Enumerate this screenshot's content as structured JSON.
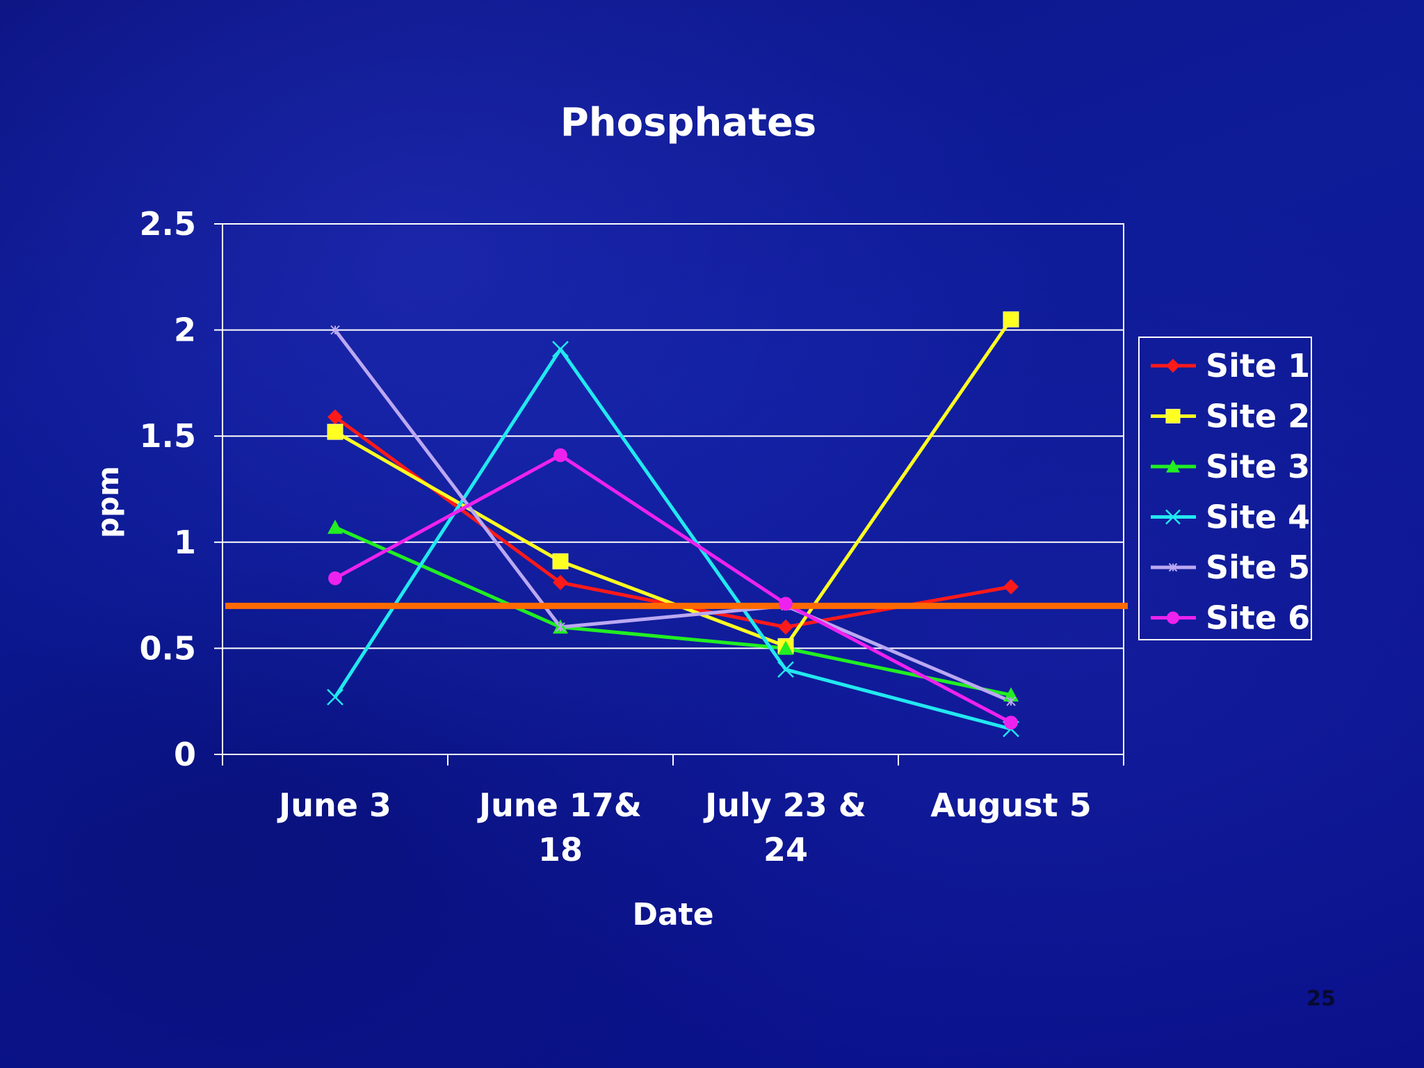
{
  "slide_number": "25",
  "chart_data": {
    "type": "line",
    "title": "Phosphates",
    "xlabel": "Date",
    "ylabel": "ppm",
    "categories": [
      "June 3",
      "June 17&\n18",
      "July 23 &\n24",
      "August 5"
    ],
    "ylim": [
      0,
      2.5
    ],
    "yticks": [
      "0",
      "0.5",
      "1",
      "1.5",
      "2",
      "2.5"
    ],
    "grid": true,
    "legend_position": "right",
    "series": [
      {
        "name": "Site 1",
        "color": "#ff1a1a",
        "marker": "diamond",
        "values": [
          1.59,
          0.81,
          0.6,
          0.79
        ]
      },
      {
        "name": "Site 2",
        "color": "#ffff22",
        "marker": "square",
        "values": [
          1.52,
          0.91,
          0.51,
          2.05
        ]
      },
      {
        "name": "Site 3",
        "color": "#22ee22",
        "marker": "triangle",
        "values": [
          1.07,
          0.6,
          0.5,
          0.28
        ]
      },
      {
        "name": "Site 4",
        "color": "#22e8f0",
        "marker": "x",
        "values": [
          0.27,
          1.91,
          0.4,
          0.12
        ]
      },
      {
        "name": "Site 5",
        "color": "#bba8f2",
        "marker": "star",
        "values": [
          2.0,
          0.6,
          0.7,
          0.25
        ]
      },
      {
        "name": "Site 6",
        "color": "#ee22ee",
        "marker": "circle",
        "values": [
          0.83,
          1.41,
          0.71,
          0.15
        ]
      }
    ],
    "reference_line": {
      "value": 0.7,
      "color": "#ff6a00"
    }
  }
}
